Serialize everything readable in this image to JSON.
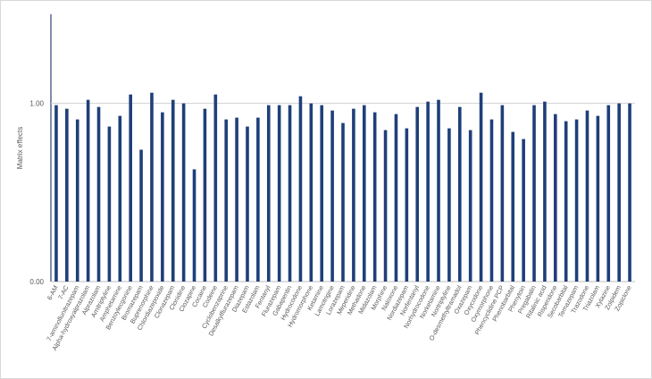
{
  "chart_data": {
    "type": "bar",
    "title": "",
    "xlabel": "",
    "ylabel": "Matrix effects",
    "ylim": [
      0,
      1.5
    ],
    "yticks": [
      {
        "value": 0,
        "label": "0.00"
      },
      {
        "value": 1,
        "label": "1.00"
      }
    ],
    "grid": false,
    "bar_color": "#1f3f7a",
    "categories": [
      "6-AM",
      "7-AC",
      "7-aminoflunitrazepam",
      "Alpha-hydroxyalprazolam",
      "Alprazolam",
      "Amitriptyline",
      "Amphetamine",
      "Benzoylecgonine",
      "Bromazepam",
      "Buprenorphine",
      "Chlordiazepoxide",
      "Clonazepam",
      "Clonidine",
      "Clozapine",
      "Cocaine",
      "Codeine",
      "Cyclobenzaprine",
      "Desalkylflurazepam",
      "Diazepam",
      "Estazolam",
      "Fentanyl",
      "Flurazepam",
      "Gabapentin",
      "Hydrocodone",
      "Hydromorphone",
      "Ketamine",
      "Lamotrigine",
      "Lorazepam",
      "Meperidine",
      "Methadone",
      "Midazolam",
      "Morphine",
      "Naloxone",
      "Nordiazepam",
      "Norfentanyl",
      "Norhydrocodone",
      "Norketamine",
      "Nortriptyline",
      "O-desmethyltramadol",
      "Oxazepam",
      "Oxycodone",
      "Oxymorphone",
      "Phencyclidine PCP",
      "Phenobarbital",
      "Phenytoin",
      "Pregabalin",
      "Ritalinic acid",
      "Risperidone",
      "Secobarbital",
      "Temazepam",
      "Trazodone",
      "Triazolam",
      "Xylazine",
      "Zolpidem",
      "Zopiclone"
    ],
    "values": [
      0.99,
      0.97,
      0.91,
      1.02,
      0.98,
      0.87,
      0.93,
      1.05,
      0.74,
      1.06,
      0.95,
      1.02,
      1.0,
      0.63,
      0.97,
      1.05,
      0.91,
      0.92,
      0.87,
      0.92,
      0.99,
      0.99,
      0.99,
      1.04,
      1.0,
      0.99,
      0.96,
      0.89,
      0.97,
      0.99,
      0.95,
      0.85,
      0.94,
      0.86,
      0.98,
      1.01,
      1.02,
      0.86,
      0.98,
      0.85,
      1.06,
      0.91,
      0.99,
      0.84,
      0.8,
      0.99,
      1.01,
      0.94,
      0.9,
      0.91,
      0.96,
      0.93,
      0.99,
      1.0,
      1.0
    ]
  }
}
